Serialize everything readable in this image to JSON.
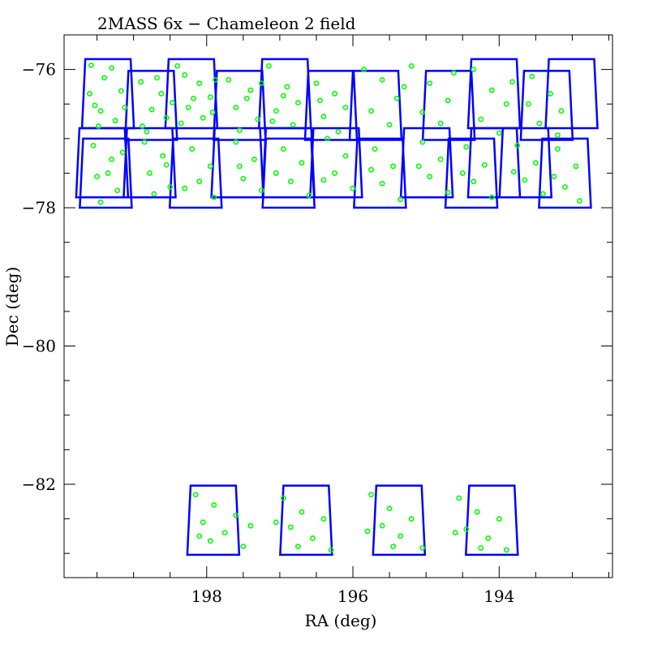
{
  "chart_data": {
    "type": "scatter",
    "title": "2MASS 6x − Chameleon 2 field",
    "xlabel": "RA (deg)",
    "ylabel": "Dec (deg)",
    "xlim": [
      199.95,
      192.45
    ],
    "ylim": [
      -83.35,
      -75.5
    ],
    "x_ticks": [
      198,
      196,
      194
    ],
    "y_ticks": [
      -76,
      -78,
      -80,
      -82
    ],
    "x_minor_step": 0.5,
    "y_minor_step": 0.5,
    "grid": false,
    "colors": {
      "points": "#00ff00",
      "fields": "#0000ff",
      "axes": "#000000"
    },
    "tile_dec_rows": [
      [
        -75.85,
        -76.85
      ],
      [
        -76.02,
        -77.02
      ],
      [
        -76.85,
        -77.85
      ],
      [
        -77.0,
        -78.0
      ],
      [
        -82.02,
        -83.02
      ]
    ],
    "tiles": [
      {
        "ra": 199.35,
        "row": 0
      },
      {
        "ra": 198.21,
        "row": 0
      },
      {
        "ra": 196.93,
        "row": 0
      },
      {
        "ra": 194.07,
        "row": 0
      },
      {
        "ra": 193.01,
        "row": 0
      },
      {
        "ra": 198.76,
        "row": 1
      },
      {
        "ra": 197.55,
        "row": 1
      },
      {
        "ra": 196.3,
        "row": 1
      },
      {
        "ra": 195.69,
        "row": 1
      },
      {
        "ra": 194.69,
        "row": 1
      },
      {
        "ra": 193.35,
        "row": 1
      },
      {
        "ra": 199.43,
        "row": 2
      },
      {
        "ra": 198.78,
        "row": 2
      },
      {
        "ra": 197.58,
        "row": 2
      },
      {
        "ra": 196.88,
        "row": 2
      },
      {
        "ra": 196.23,
        "row": 2
      },
      {
        "ra": 194.99,
        "row": 2
      },
      {
        "ra": 194.07,
        "row": 2
      },
      {
        "ra": 193.64,
        "row": 2
      },
      {
        "ra": 199.38,
        "row": 3
      },
      {
        "ra": 198.15,
        "row": 3
      },
      {
        "ra": 196.88,
        "row": 3
      },
      {
        "ra": 195.63,
        "row": 3
      },
      {
        "ra": 194.38,
        "row": 3
      },
      {
        "ra": 193.1,
        "row": 3
      },
      {
        "ra": 197.91,
        "row": 4
      },
      {
        "ra": 196.64,
        "row": 4
      },
      {
        "ra": 195.37,
        "row": 4
      },
      {
        "ra": 194.1,
        "row": 4
      }
    ],
    "points": [
      [
        199.58,
        -75.94
      ],
      [
        199.4,
        -76.12
      ],
      [
        199.17,
        -76.31
      ],
      [
        199.53,
        -76.52
      ],
      [
        199.25,
        -76.74
      ],
      [
        199.45,
        -76.6
      ],
      [
        199.6,
        -76.35
      ],
      [
        199.3,
        -75.98
      ],
      [
        199.12,
        -76.55
      ],
      [
        199.48,
        -76.82
      ],
      [
        198.9,
        -76.18
      ],
      [
        198.62,
        -76.35
      ],
      [
        198.75,
        -76.58
      ],
      [
        198.55,
        -76.7
      ],
      [
        198.88,
        -76.82
      ],
      [
        198.68,
        -76.12
      ],
      [
        198.47,
        -76.48
      ],
      [
        198.82,
        -76.9
      ],
      [
        198.4,
        -75.95
      ],
      [
        198.1,
        -76.2
      ],
      [
        197.95,
        -76.4
      ],
      [
        198.25,
        -76.55
      ],
      [
        198.05,
        -76.7
      ],
      [
        198.35,
        -76.78
      ],
      [
        197.88,
        -76.15
      ],
      [
        198.18,
        -76.42
      ],
      [
        198.3,
        -76.08
      ],
      [
        197.92,
        -76.62
      ],
      [
        197.7,
        -76.15
      ],
      [
        197.4,
        -76.3
      ],
      [
        197.6,
        -76.55
      ],
      [
        197.3,
        -76.72
      ],
      [
        197.55,
        -76.88
      ],
      [
        197.25,
        -76.2
      ],
      [
        197.45,
        -76.42
      ],
      [
        197.15,
        -75.95
      ],
      [
        196.9,
        -76.25
      ],
      [
        196.75,
        -76.48
      ],
      [
        197.05,
        -76.6
      ],
      [
        196.82,
        -76.8
      ],
      [
        196.95,
        -76.38
      ],
      [
        197.1,
        -76.75
      ],
      [
        196.5,
        -76.2
      ],
      [
        196.25,
        -76.35
      ],
      [
        196.1,
        -76.55
      ],
      [
        196.4,
        -76.68
      ],
      [
        196.2,
        -76.9
      ],
      [
        196.45,
        -76.45
      ],
      [
        195.85,
        -76.0
      ],
      [
        195.6,
        -76.15
      ],
      [
        195.4,
        -76.42
      ],
      [
        195.75,
        -76.6
      ],
      [
        195.5,
        -76.8
      ],
      [
        195.3,
        -76.25
      ],
      [
        195.2,
        -75.95
      ],
      [
        194.95,
        -76.2
      ],
      [
        194.7,
        -76.45
      ],
      [
        195.05,
        -76.62
      ],
      [
        194.8,
        -76.78
      ],
      [
        194.62,
        -76.05
      ],
      [
        194.35,
        -76.0
      ],
      [
        194.1,
        -76.3
      ],
      [
        193.9,
        -76.5
      ],
      [
        194.25,
        -76.72
      ],
      [
        194.0,
        -76.92
      ],
      [
        193.82,
        -76.18
      ],
      [
        193.55,
        -76.1
      ],
      [
        193.3,
        -76.35
      ],
      [
        193.15,
        -76.6
      ],
      [
        193.45,
        -76.78
      ],
      [
        193.2,
        -76.95
      ],
      [
        193.6,
        -76.5
      ],
      [
        199.55,
        -77.1
      ],
      [
        199.3,
        -77.3
      ],
      [
        199.5,
        -77.55
      ],
      [
        199.22,
        -77.75
      ],
      [
        199.45,
        -77.92
      ],
      [
        199.15,
        -77.2
      ],
      [
        199.35,
        -77.5
      ],
      [
        198.85,
        -77.05
      ],
      [
        198.6,
        -77.25
      ],
      [
        198.78,
        -77.5
      ],
      [
        198.5,
        -77.7
      ],
      [
        198.72,
        -77.8
      ],
      [
        198.55,
        -77.38
      ],
      [
        198.2,
        -77.15
      ],
      [
        197.95,
        -77.4
      ],
      [
        198.1,
        -77.62
      ],
      [
        197.9,
        -77.85
      ],
      [
        198.3,
        -77.72
      ],
      [
        197.6,
        -77.05
      ],
      [
        197.35,
        -77.3
      ],
      [
        197.5,
        -77.58
      ],
      [
        197.25,
        -77.75
      ],
      [
        197.55,
        -77.4
      ],
      [
        196.95,
        -77.15
      ],
      [
        196.7,
        -77.35
      ],
      [
        196.85,
        -77.62
      ],
      [
        196.6,
        -77.82
      ],
      [
        197.05,
        -77.5
      ],
      [
        196.35,
        -77.0
      ],
      [
        196.1,
        -77.25
      ],
      [
        196.25,
        -77.5
      ],
      [
        196.0,
        -77.72
      ],
      [
        196.4,
        -77.6
      ],
      [
        195.7,
        -77.15
      ],
      [
        195.45,
        -77.4
      ],
      [
        195.6,
        -77.65
      ],
      [
        195.35,
        -77.88
      ],
      [
        195.75,
        -77.45
      ],
      [
        195.05,
        -77.05
      ],
      [
        194.8,
        -77.3
      ],
      [
        194.95,
        -77.55
      ],
      [
        194.7,
        -77.78
      ],
      [
        195.1,
        -77.4
      ],
      [
        194.45,
        -77.12
      ],
      [
        194.2,
        -77.38
      ],
      [
        194.35,
        -77.62
      ],
      [
        194.1,
        -77.85
      ],
      [
        194.5,
        -77.5
      ],
      [
        193.75,
        -77.1
      ],
      [
        193.5,
        -77.35
      ],
      [
        193.65,
        -77.6
      ],
      [
        193.4,
        -77.8
      ],
      [
        193.8,
        -77.48
      ],
      [
        193.2,
        -77.15
      ],
      [
        192.95,
        -77.4
      ],
      [
        193.1,
        -77.7
      ],
      [
        192.9,
        -77.9
      ],
      [
        193.25,
        -77.55
      ],
      [
        198.15,
        -82.15
      ],
      [
        197.9,
        -82.3
      ],
      [
        198.05,
        -82.55
      ],
      [
        197.75,
        -82.7
      ],
      [
        197.95,
        -82.82
      ],
      [
        197.6,
        -82.45
      ],
      [
        197.4,
        -82.6
      ],
      [
        197.5,
        -82.9
      ],
      [
        198.1,
        -82.75
      ],
      [
        196.95,
        -82.2
      ],
      [
        196.7,
        -82.4
      ],
      [
        196.85,
        -82.62
      ],
      [
        196.55,
        -82.78
      ],
      [
        196.4,
        -82.5
      ],
      [
        196.3,
        -82.95
      ],
      [
        196.75,
        -82.9
      ],
      [
        197.05,
        -82.55
      ],
      [
        195.75,
        -82.15
      ],
      [
        195.5,
        -82.35
      ],
      [
        195.6,
        -82.6
      ],
      [
        195.35,
        -82.75
      ],
      [
        195.2,
        -82.5
      ],
      [
        195.05,
        -82.92
      ],
      [
        195.45,
        -82.9
      ],
      [
        195.8,
        -82.68
      ],
      [
        194.55,
        -82.2
      ],
      [
        194.3,
        -82.4
      ],
      [
        194.45,
        -82.65
      ],
      [
        194.15,
        -82.78
      ],
      [
        194.0,
        -82.5
      ],
      [
        193.9,
        -82.95
      ],
      [
        194.25,
        -82.92
      ],
      [
        194.6,
        -82.7
      ]
    ]
  }
}
